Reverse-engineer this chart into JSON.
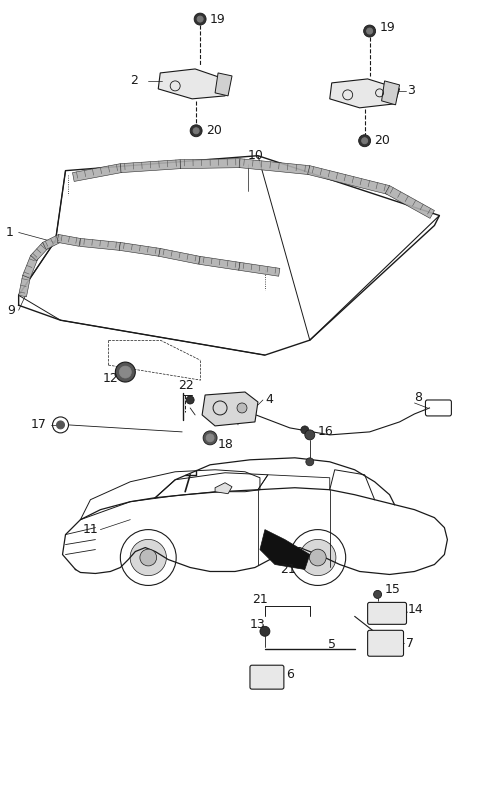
{
  "bg": "#ffffff",
  "lc": "#1a1a1a",
  "fig_w": 4.8,
  "fig_h": 7.87,
  "dpi": 100
}
